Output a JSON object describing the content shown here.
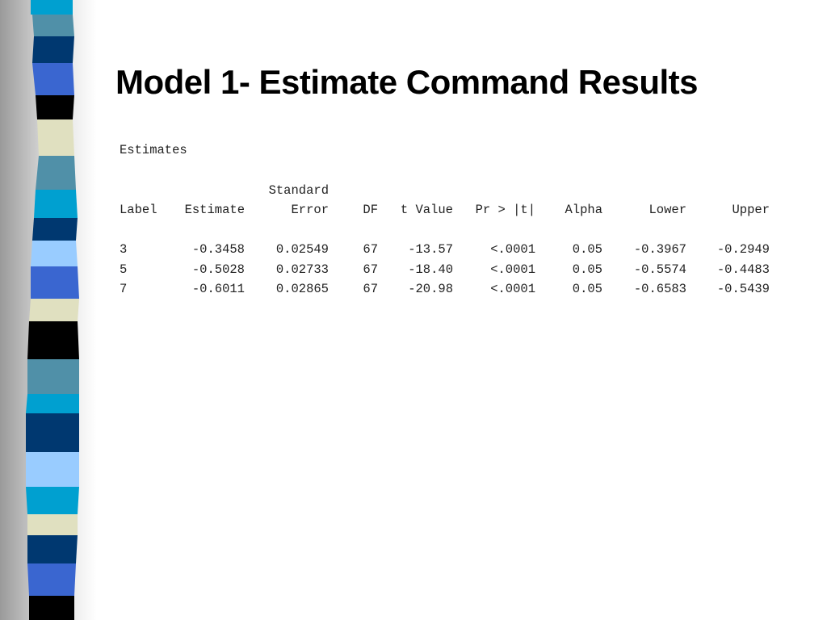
{
  "title": "Model 1- Estimate Command Results",
  "section": "Estimates",
  "table": {
    "columns": [
      {
        "header": [
          "Label"
        ]
      },
      {
        "header": [
          "Estimate"
        ]
      },
      {
        "header": [
          "Standard",
          "Error"
        ]
      },
      {
        "header": [
          "DF"
        ]
      },
      {
        "header": [
          "t Value"
        ]
      },
      {
        "header": [
          "Pr > |t|"
        ]
      },
      {
        "header": [
          "Alpha"
        ]
      },
      {
        "header": [
          "Lower"
        ]
      },
      {
        "header": [
          "Upper"
        ]
      }
    ],
    "rows": [
      [
        "3",
        "-0.3458",
        "0.02549",
        "67",
        "-13.57",
        "<.0001",
        "0.05",
        "-0.3967",
        "-0.2949"
      ],
      [
        "5",
        "-0.5028",
        "0.02733",
        "67",
        "-18.40",
        "<.0001",
        "0.05",
        "-0.5574",
        "-0.4483"
      ],
      [
        "7",
        "-0.6011",
        "0.02865",
        "67",
        "-20.98",
        "<.0001",
        "0.05",
        "-0.6583",
        "-0.5439"
      ]
    ]
  }
}
